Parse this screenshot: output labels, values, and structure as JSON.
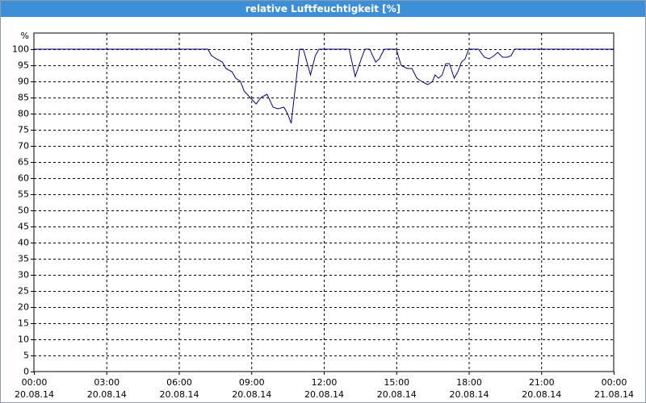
{
  "chart_data": {
    "type": "line",
    "title": "relative Luftfeuchtigkeit [%]",
    "ylabel": "%",
    "xlim": [
      0,
      24
    ],
    "ylim": [
      0,
      105
    ],
    "xticks": [
      {
        "value": 0,
        "label": "00:00"
      },
      {
        "value": 3,
        "label": "03:00"
      },
      {
        "value": 6,
        "label": "06:00"
      },
      {
        "value": 9,
        "label": "09:00"
      },
      {
        "value": 12,
        "label": "12:00"
      },
      {
        "value": 15,
        "label": "15:00"
      },
      {
        "value": 18,
        "label": "18:00"
      },
      {
        "value": 21,
        "label": "21:00"
      },
      {
        "value": 24,
        "label": "00:00"
      }
    ],
    "xtick_dates": [
      "20.08.14",
      "20.08.14",
      "20.08.14",
      "20.08.14",
      "20.08.14",
      "20.08.14",
      "20.08.14",
      "20.08.14",
      "21.08.14"
    ],
    "yticks": [
      0,
      5,
      10,
      15,
      20,
      25,
      30,
      35,
      40,
      45,
      50,
      55,
      60,
      65,
      70,
      75,
      80,
      85,
      90,
      95,
      100
    ],
    "grid": true,
    "x": [
      0,
      7.2,
      7.35,
      7.55,
      7.8,
      7.95,
      8.2,
      8.35,
      8.55,
      8.7,
      8.95,
      9.2,
      9.4,
      9.65,
      9.9,
      10.1,
      10.35,
      10.5,
      10.65,
      10.85,
      11.0,
      11.15,
      11.45,
      11.65,
      11.8,
      13.05,
      13.3,
      13.55,
      13.7,
      13.9,
      14.15,
      14.3,
      14.5,
      15.0,
      15.2,
      15.45,
      15.65,
      15.85,
      16.05,
      16.3,
      16.5,
      16.6,
      16.75,
      16.9,
      17.05,
      17.2,
      17.4,
      17.55,
      17.7,
      17.85,
      18.0,
      18.4,
      18.65,
      18.85,
      19.05,
      19.2,
      19.4,
      19.6,
      19.75,
      19.9,
      24
    ],
    "series": [
      {
        "color": "#000080",
        "values": [
          100,
          100,
          98,
          97,
          96,
          94,
          93,
          91,
          90,
          87,
          85,
          83,
          85,
          86,
          82,
          81.5,
          82,
          80,
          77,
          90,
          100,
          100,
          92,
          98,
          100,
          100,
          91.5,
          97,
          100,
          100,
          96,
          97,
          100,
          100,
          95,
          94,
          94,
          91,
          90,
          89,
          90,
          92,
          91,
          92,
          95.5,
          95.5,
          91,
          93,
          96,
          97,
          100,
          100,
          97.5,
          97,
          98,
          99,
          97.5,
          97.5,
          98,
          100,
          100
        ]
      }
    ]
  }
}
